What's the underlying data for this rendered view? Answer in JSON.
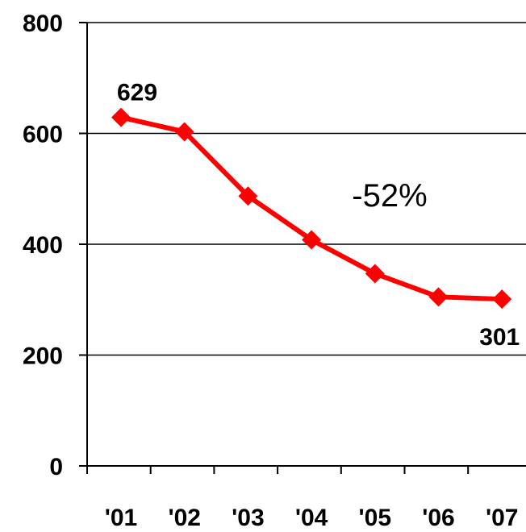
{
  "chart_data": {
    "type": "line",
    "categories": [
      "'01",
      "'02",
      "'03",
      "'04",
      "'05",
      "'06",
      "'07"
    ],
    "values": [
      629,
      603,
      487,
      408,
      347,
      305,
      301
    ],
    "ylim": [
      0,
      800
    ],
    "yticks": [
      "0",
      "200",
      "400",
      "600",
      "800"
    ],
    "grid": true,
    "data_labels": [
      {
        "index": 0,
        "text": "629"
      },
      {
        "index": 6,
        "text": "301"
      }
    ],
    "annotation": "-52%",
    "colors": {
      "line": "#ff0000",
      "grid": "#000000",
      "axis": "#000000"
    }
  }
}
